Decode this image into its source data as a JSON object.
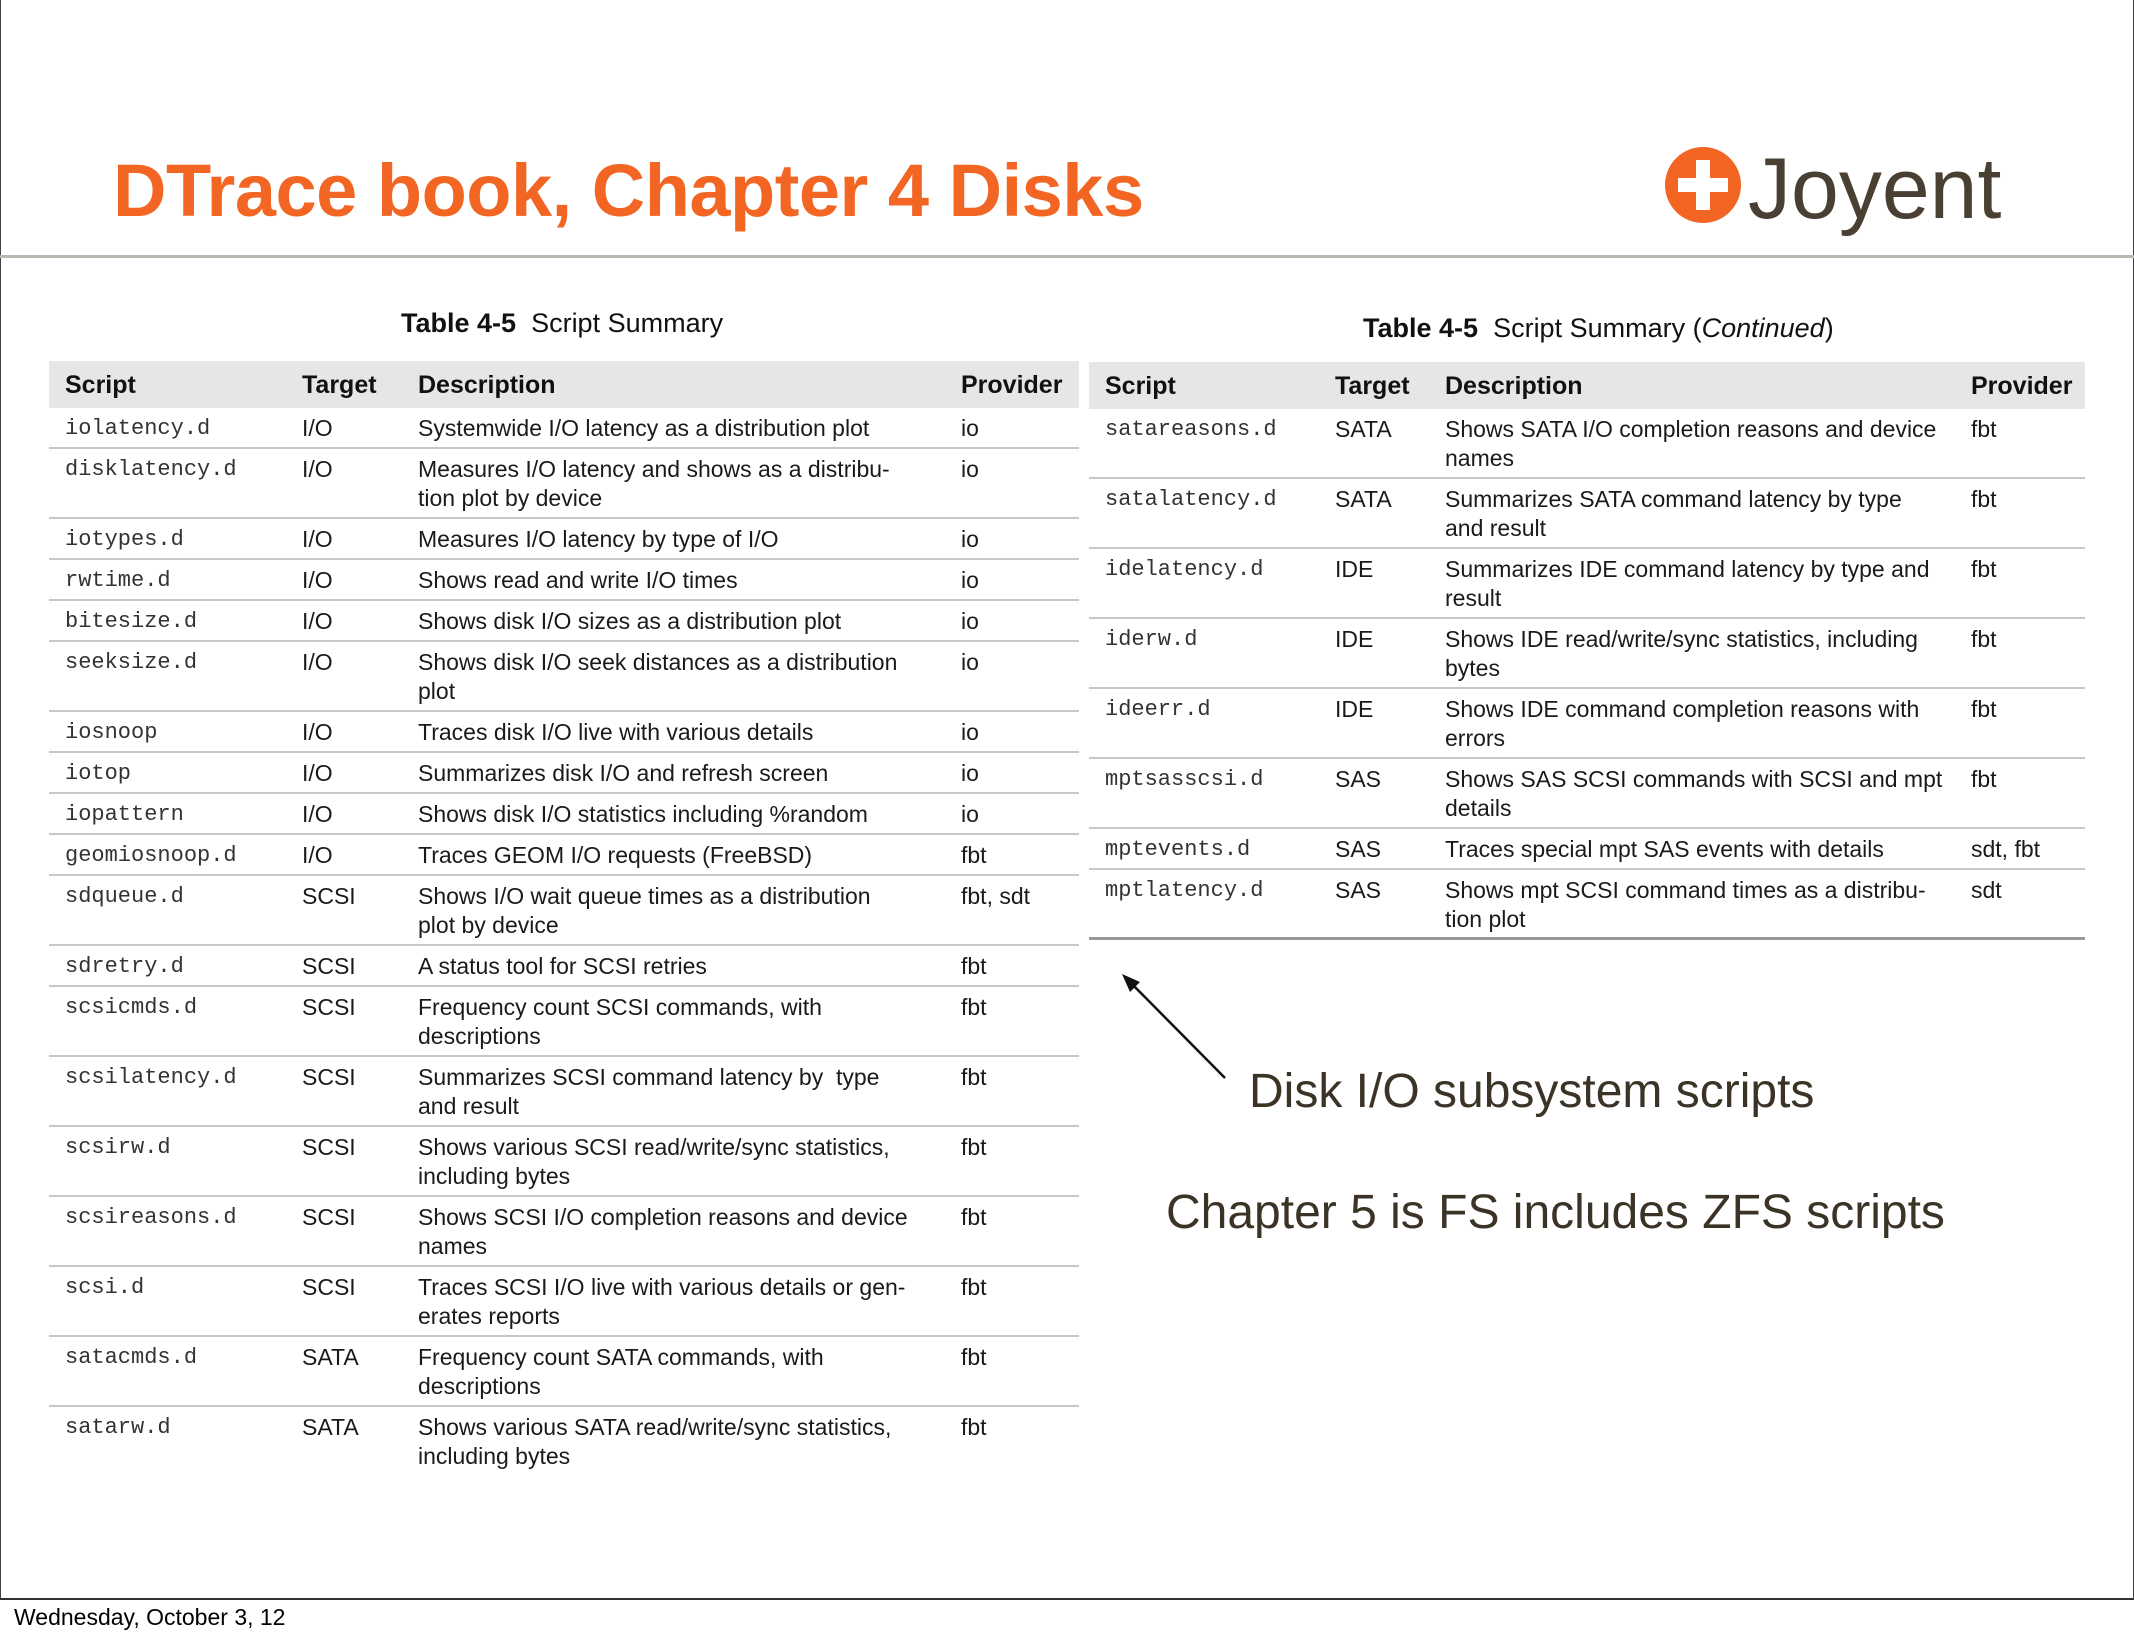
{
  "slide": {
    "title": "DTrace book, Chapter 4 Disks",
    "logo_text": "Joyent",
    "title_color": "#f26522",
    "footer_date": "Wednesday, October 3, 12"
  },
  "left_table": {
    "caption_number": "Table 4-5",
    "caption_title": "Script Summary",
    "headers": [
      "Script",
      "Target",
      "Description",
      "Provider"
    ],
    "rows": [
      {
        "script": "iolatency.d",
        "target": "I/O",
        "description": "Systemwide I/O latency as a distribution plot",
        "provider": "io",
        "lines": 1
      },
      {
        "script": "disklatency.d",
        "target": "I/O",
        "description": "Measures I/O latency and shows as a distribu-\ntion plot by device",
        "provider": "io",
        "lines": 2
      },
      {
        "script": "iotypes.d",
        "target": "I/O",
        "description": "Measures I/O latency by type of I/O",
        "provider": "io",
        "lines": 1
      },
      {
        "script": "rwtime.d",
        "target": "I/O",
        "description": "Shows read and write I/O times",
        "provider": "io",
        "lines": 1
      },
      {
        "script": "bitesize.d",
        "target": "I/O",
        "description": "Shows disk I/O sizes as a distribution plot",
        "provider": "io",
        "lines": 1
      },
      {
        "script": "seeksize.d",
        "target": "I/O",
        "description": "Shows disk I/O seek distances as a distribution\nplot",
        "provider": "io",
        "lines": 2
      },
      {
        "script": "iosnoop",
        "target": "I/O",
        "description": "Traces disk I/O live with various details",
        "provider": "io",
        "lines": 1
      },
      {
        "script": "iotop",
        "target": "I/O",
        "description": "Summarizes disk I/O and refresh screen",
        "provider": "io",
        "lines": 1
      },
      {
        "script": "iopattern",
        "target": "I/O",
        "description": "Shows disk I/O statistics including %random",
        "provider": "io",
        "lines": 1
      },
      {
        "script": "geomiosnoop.d",
        "target": "I/O",
        "description": "Traces GEOM I/O requests (FreeBSD)",
        "provider": "fbt",
        "lines": 1
      },
      {
        "script": "sdqueue.d",
        "target": "SCSI",
        "description": "Shows I/O wait queue times as a distribution\nplot by device",
        "provider": "fbt, sdt",
        "lines": 2
      },
      {
        "script": "sdretry.d",
        "target": "SCSI",
        "description": "A status tool for SCSI retries",
        "provider": "fbt",
        "lines": 1
      },
      {
        "script": "scsicmds.d",
        "target": "SCSI",
        "description": "Frequency count SCSI commands, with\ndescriptions",
        "provider": "fbt",
        "lines": 2
      },
      {
        "script": "scsilatency.d",
        "target": "SCSI",
        "description": "Summarizes SCSI command latency by  type\nand result",
        "provider": "fbt",
        "lines": 2
      },
      {
        "script": "scsirw.d",
        "target": "SCSI",
        "description": "Shows various SCSI read/write/sync statistics,\nincluding bytes",
        "provider": "fbt",
        "lines": 2
      },
      {
        "script": "scsireasons.d",
        "target": "SCSI",
        "description": "Shows SCSI I/O completion reasons and device\nnames",
        "provider": "fbt",
        "lines": 2
      },
      {
        "script": "scsi.d",
        "target": "SCSI",
        "description": "Traces SCSI I/O live with various details or gen-\nerates reports",
        "provider": "fbt",
        "lines": 2
      },
      {
        "script": "satacmds.d",
        "target": "SATA",
        "description": "Frequency count SATA commands, with\ndescriptions",
        "provider": "fbt",
        "lines": 2
      },
      {
        "script": "satarw.d",
        "target": "SATA",
        "description": "Shows various SATA read/write/sync statistics,\nincluding bytes",
        "provider": "fbt",
        "lines": 2
      }
    ]
  },
  "right_table": {
    "caption_number": "Table 4-5",
    "caption_title": "Script Summary (",
    "caption_italic": "Continued",
    "caption_close": ")",
    "headers": [
      "Script",
      "Target",
      "Description",
      "Provider"
    ],
    "rows": [
      {
        "script": "satareasons.d",
        "target": "SATA",
        "description": "Shows SATA I/O completion reasons and device\nnames",
        "provider": "fbt",
        "lines": 2
      },
      {
        "script": "satalatency.d",
        "target": "SATA",
        "description": "Summarizes SATA command latency by type\nand result",
        "provider": "fbt",
        "lines": 2
      },
      {
        "script": "idelatency.d",
        "target": "IDE",
        "description": "Summarizes IDE command latency by type and\nresult",
        "provider": "fbt",
        "lines": 2
      },
      {
        "script": "iderw.d",
        "target": "IDE",
        "description": "Shows IDE read/write/sync statistics, including\nbytes",
        "provider": "fbt",
        "lines": 2
      },
      {
        "script": "ideerr.d",
        "target": "IDE",
        "description": "Shows IDE command completion reasons with\nerrors",
        "provider": "fbt",
        "lines": 2
      },
      {
        "script": "mptsasscsi.d",
        "target": "SAS",
        "description": "Shows SAS SCSI commands with SCSI and mpt\ndetails",
        "provider": "fbt",
        "lines": 2
      },
      {
        "script": "mptevents.d",
        "target": "SAS",
        "description": "Traces special mpt SAS events with details",
        "provider": "sdt, fbt",
        "lines": 1
      },
      {
        "script": "mptlatency.d",
        "target": "SAS",
        "description": "Shows mpt SCSI command times as a distribu-\ntion plot",
        "provider": "sdt",
        "lines": 2
      }
    ]
  },
  "notes": {
    "subsystem": "Disk I/O subsystem scripts",
    "chapter5": "Chapter 5 is FS includes ZFS scripts"
  }
}
